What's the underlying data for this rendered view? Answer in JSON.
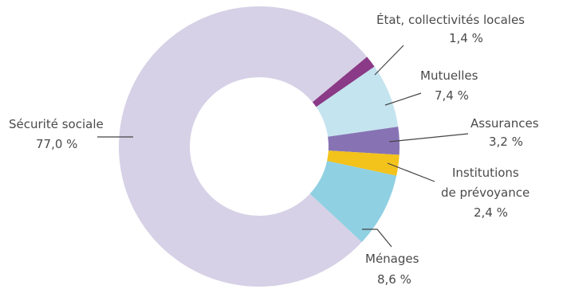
{
  "chart_data": {
    "type": "pie",
    "style": "donut",
    "slices": [
      {
        "label": "Sécurité sociale",
        "value": 77.0,
        "value_label": "77,0 %",
        "color": "#d6d1e6"
      },
      {
        "label": "État, collectivités locales",
        "value": 1.4,
        "value_label": "1,4 %",
        "color": "#8a3a86"
      },
      {
        "label": "Mutuelles",
        "value": 7.4,
        "value_label": "7,4 %",
        "color": "#c4e4ef"
      },
      {
        "label": "Assurances",
        "value": 3.2,
        "value_label": "3,2 %",
        "color": "#8773b4"
      },
      {
        "label": "Institutions de prévoyance",
        "value": 2.4,
        "value_label": "2,4 %",
        "color": "#f3c21b"
      },
      {
        "label": "Ménages",
        "value": 8.6,
        "value_label": "8,6 %",
        "color": "#8fd0e2"
      }
    ]
  }
}
